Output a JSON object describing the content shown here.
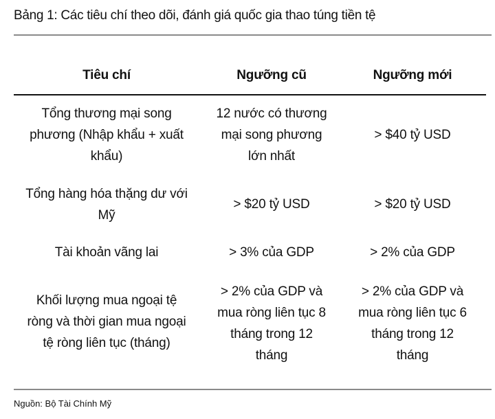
{
  "title": "Bảng 1: Các tiêu chí theo dõi, đánh giá quốc gia thao túng tiền tệ",
  "table": {
    "headers": [
      "Tiêu chí",
      "Ngưỡng cũ",
      "Ngưỡng mới"
    ],
    "rows": [
      [
        "Tổng thương mại song\nphương (Nhập khẩu + xuất\nkhẩu)",
        "12 nước có thương\nmại song phương\nlớn nhất",
        "> $40 tỷ USD"
      ],
      [
        "Tổng hàng hóa thặng dư với\nMỹ",
        "> $20 tỷ USD",
        "> $20 tỷ USD"
      ],
      [
        "Tài khoản vãng lai",
        "> 3% của GDP",
        "> 2% của GDP"
      ],
      [
        "Khối lượng mua ngoại tệ\nròng và thời gian mua ngoại\ntệ ròng liên tục (tháng)",
        "> 2% của GDP và\nmua ròng liên tục 8\ntháng trong 12\ntháng",
        "> 2% của GDP và\nmua ròng liên tục 6\ntháng trong 12\ntháng"
      ]
    ]
  },
  "source": "Nguồn: Bộ Tài Chính Mỹ"
}
